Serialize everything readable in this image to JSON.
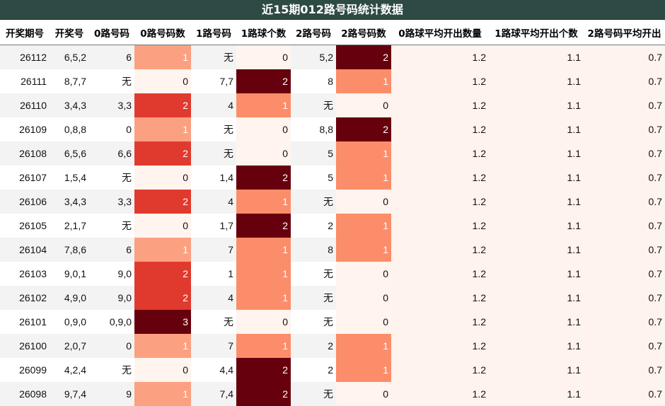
{
  "title": "近15期012路号码统计数据",
  "columns": [
    "开奖期号",
    "开奖号",
    "0路号码",
    "0路号码数",
    "1路号码",
    "1路球个数",
    "2路号码",
    "2路号码数",
    "0路球平均开出数量",
    "1路球平均开出个数",
    "2路号码平均开出"
  ],
  "chart_data": {
    "type": "table",
    "title": "近15期012路号码统计数据",
    "heat_columns": [
      3,
      5,
      7
    ],
    "avg_columns": [
      8,
      9,
      10
    ],
    "colors": {
      "count_0": "#fff4ee",
      "count_1_mid": "#fc8d6a",
      "count_1_light": "#fca082",
      "count_2": "#e03a2e",
      "count_3": "#67000d",
      "avg_bg": "#fff3ee",
      "title_bg": "#2e4a44"
    },
    "rows": [
      [
        "26112",
        "6,5,2",
        "6",
        "1",
        "无",
        "0",
        "5,2",
        "2",
        "1.2",
        "1.1",
        "0.7"
      ],
      [
        "26111",
        "8,7,7",
        "无",
        "0",
        "7,7",
        "2",
        "8",
        "1",
        "1.2",
        "1.1",
        "0.7"
      ],
      [
        "26110",
        "3,4,3",
        "3,3",
        "2",
        "4",
        "1",
        "无",
        "0",
        "1.2",
        "1.1",
        "0.7"
      ],
      [
        "26109",
        "0,8,8",
        "0",
        "1",
        "无",
        "0",
        "8,8",
        "2",
        "1.2",
        "1.1",
        "0.7"
      ],
      [
        "26108",
        "6,5,6",
        "6,6",
        "2",
        "无",
        "0",
        "5",
        "1",
        "1.2",
        "1.1",
        "0.7"
      ],
      [
        "26107",
        "1,5,4",
        "无",
        "0",
        "1,4",
        "2",
        "5",
        "1",
        "1.2",
        "1.1",
        "0.7"
      ],
      [
        "26106",
        "3,4,3",
        "3,3",
        "2",
        "4",
        "1",
        "无",
        "0",
        "1.2",
        "1.1",
        "0.7"
      ],
      [
        "26105",
        "2,1,7",
        "无",
        "0",
        "1,7",
        "2",
        "2",
        "1",
        "1.2",
        "1.1",
        "0.7"
      ],
      [
        "26104",
        "7,8,6",
        "6",
        "1",
        "7",
        "1",
        "8",
        "1",
        "1.2",
        "1.1",
        "0.7"
      ],
      [
        "26103",
        "9,0,1",
        "9,0",
        "2",
        "1",
        "1",
        "无",
        "0",
        "1.2",
        "1.1",
        "0.7"
      ],
      [
        "26102",
        "4,9,0",
        "9,0",
        "2",
        "4",
        "1",
        "无",
        "0",
        "1.2",
        "1.1",
        "0.7"
      ],
      [
        "26101",
        "0,9,0",
        "0,9,0",
        "3",
        "无",
        "0",
        "无",
        "0",
        "1.2",
        "1.1",
        "0.7"
      ],
      [
        "26100",
        "2,0,7",
        "0",
        "1",
        "7",
        "1",
        "2",
        "1",
        "1.2",
        "1.1",
        "0.7"
      ],
      [
        "26099",
        "4,2,4",
        "无",
        "0",
        "4,4",
        "2",
        "2",
        "1",
        "1.2",
        "1.1",
        "0.7"
      ],
      [
        "26098",
        "9,7,4",
        "9",
        "1",
        "7,4",
        "2",
        "无",
        "0",
        "1.2",
        "1.1",
        "0.7"
      ]
    ]
  }
}
